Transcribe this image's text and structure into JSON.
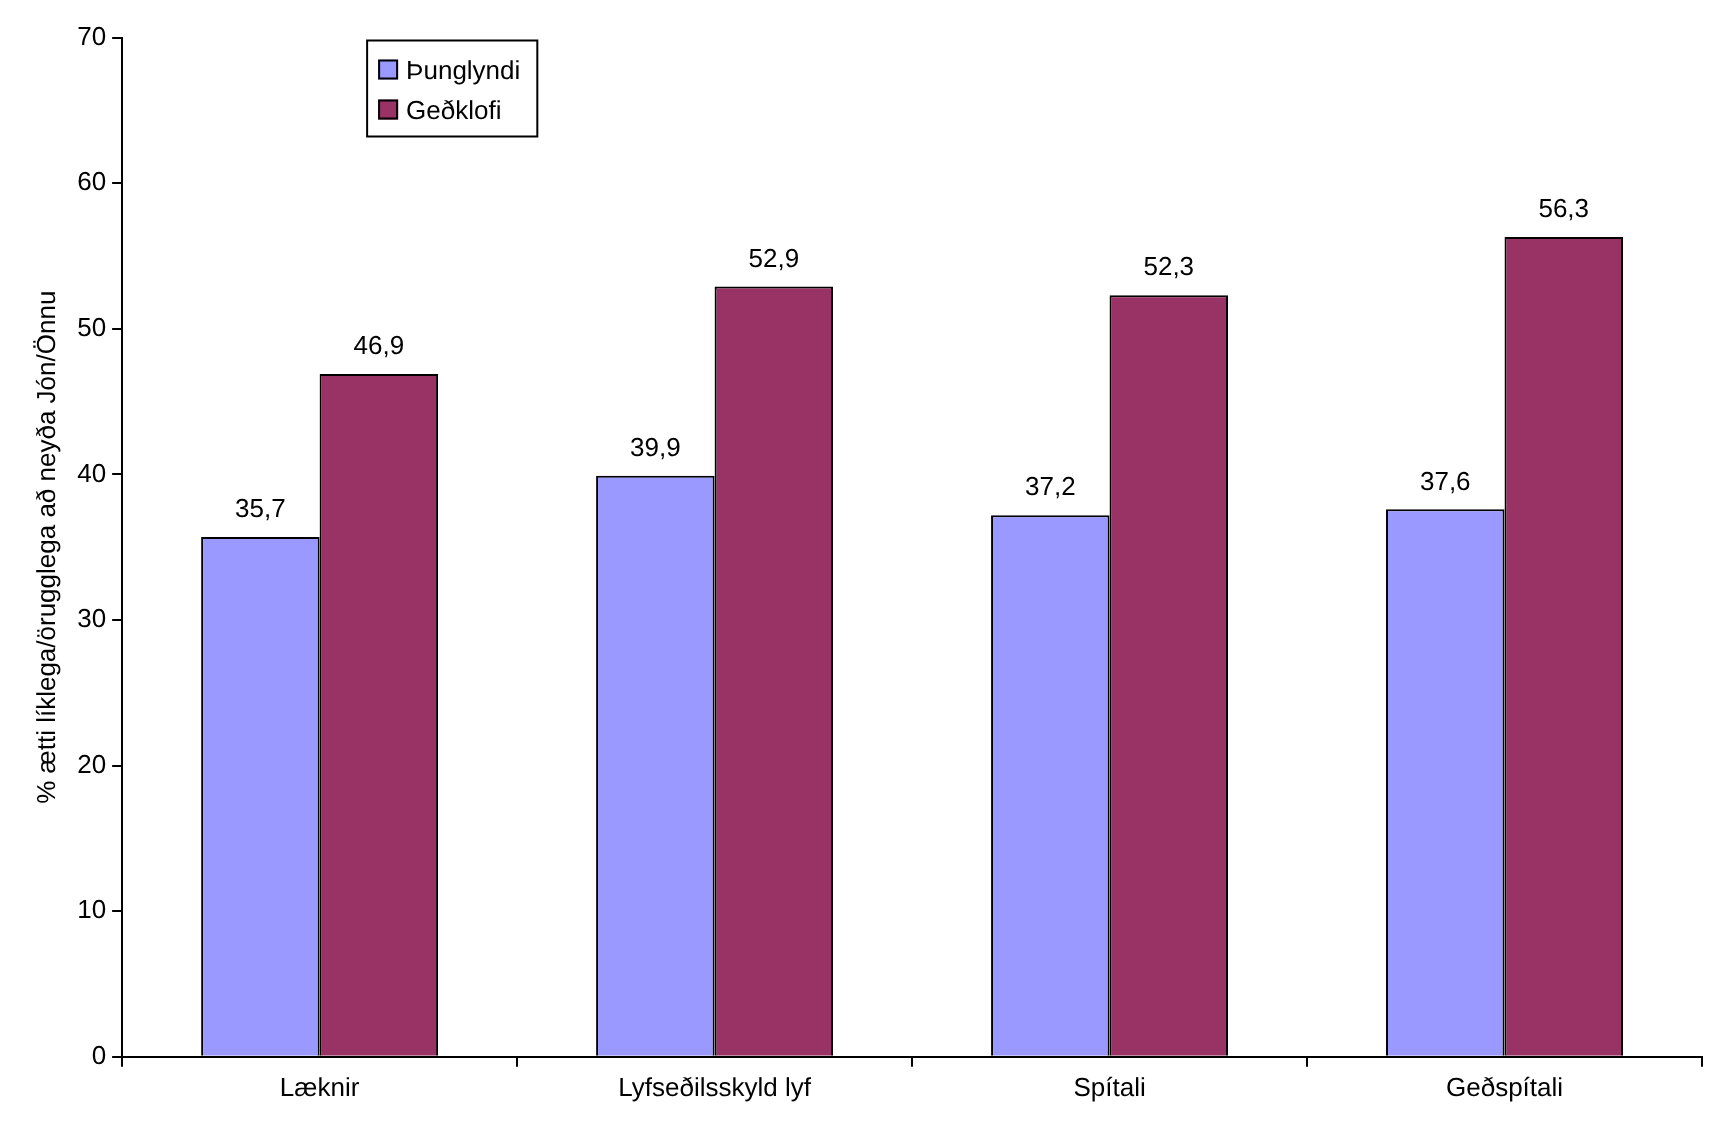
{
  "chart_data": {
    "type": "bar",
    "ylabel": "% ætti líklega/örugglega að neyða Jón/Önnu",
    "categories": [
      "Læknir",
      "Lyfseðilsskyld lyf",
      "Spítali",
      "Geðspítali"
    ],
    "series": [
      {
        "name": "Þunglyndi",
        "color": "#9999ff",
        "values": [
          35.7,
          39.9,
          37.2,
          37.6
        ],
        "value_labels": [
          "35,7",
          "39,9",
          "37,2",
          "37,6"
        ]
      },
      {
        "name": "Geðklofi",
        "color": "#993366",
        "values": [
          46.9,
          52.9,
          52.3,
          56.3
        ],
        "value_labels": [
          "46,9",
          "52,9",
          "52,3",
          "56,3"
        ]
      }
    ],
    "ylim": [
      0,
      70
    ],
    "yticks": [
      0,
      10,
      20,
      30,
      40,
      50,
      60,
      70
    ],
    "grid": false,
    "legend": "top left"
  }
}
